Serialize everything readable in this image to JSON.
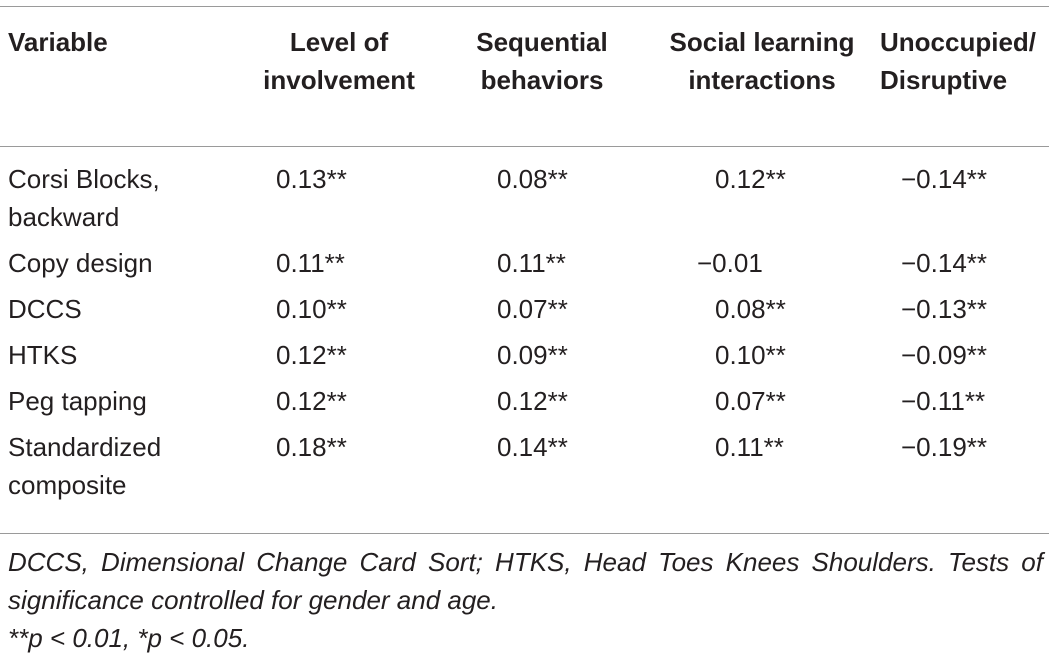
{
  "table": {
    "headers": [
      "Variable",
      "Level of involvement",
      "Sequential behaviors",
      "Social learning interactions",
      "Unoccupied/ Disruptive"
    ],
    "rows": [
      [
        "Corsi Blocks, backward",
        "0.13**",
        "0.08**",
        "0.12**",
        "−0.14**"
      ],
      [
        "Copy design",
        "0.11**",
        "0.11**",
        "−0.01",
        "−0.14**"
      ],
      [
        "DCCS",
        "0.10**",
        "0.07**",
        "0.08**",
        "−0.13**"
      ],
      [
        "HTKS",
        "0.12**",
        "0.09**",
        "0.10**",
        "−0.09**"
      ],
      [
        "Peg tapping",
        "0.12**",
        "0.12**",
        "0.07**",
        "−0.11**"
      ],
      [
        "Standardized composite",
        "0.18**",
        "0.14**",
        "0.11**",
        "−0.19**"
      ]
    ]
  },
  "footnote": {
    "text": "DCCS, Dimensional Change Card Sort; HTKS, Head Toes Knees Shoulders. Tests of significance controlled for gender and age.",
    "significance": "**p < 0.01, *p < 0.05."
  }
}
